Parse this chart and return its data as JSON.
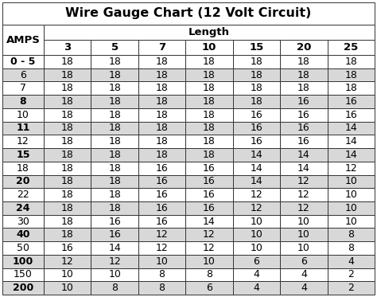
{
  "title": "Wire Gauge Chart (12 Volt Circuit)",
  "col_header_top": "Length",
  "row_header": "AMPS",
  "length_cols": [
    "3",
    "5",
    "7",
    "10",
    "15",
    "20",
    "25"
  ],
  "amp_rows": [
    "0 - 5",
    "6",
    "7",
    "8",
    "10",
    "11",
    "12",
    "15",
    "18",
    "20",
    "22",
    "24",
    "30",
    "40",
    "50",
    "100",
    "150",
    "200"
  ],
  "table_data": [
    [
      18,
      18,
      18,
      18,
      18,
      18,
      18
    ],
    [
      18,
      18,
      18,
      18,
      18,
      18,
      18
    ],
    [
      18,
      18,
      18,
      18,
      18,
      18,
      18
    ],
    [
      18,
      18,
      18,
      18,
      18,
      16,
      16
    ],
    [
      18,
      18,
      18,
      18,
      16,
      16,
      16
    ],
    [
      18,
      18,
      18,
      18,
      16,
      16,
      14
    ],
    [
      18,
      18,
      18,
      18,
      16,
      16,
      14
    ],
    [
      18,
      18,
      18,
      18,
      14,
      14,
      14
    ],
    [
      18,
      18,
      16,
      16,
      14,
      14,
      12
    ],
    [
      18,
      18,
      16,
      16,
      14,
      12,
      10
    ],
    [
      18,
      18,
      16,
      16,
      12,
      12,
      10
    ],
    [
      18,
      18,
      16,
      16,
      12,
      12,
      10
    ],
    [
      18,
      16,
      16,
      14,
      10,
      10,
      10
    ],
    [
      18,
      16,
      12,
      12,
      10,
      10,
      8
    ],
    [
      16,
      14,
      12,
      12,
      10,
      10,
      8
    ],
    [
      12,
      12,
      10,
      10,
      6,
      6,
      4
    ],
    [
      10,
      10,
      8,
      8,
      4,
      4,
      2
    ],
    [
      10,
      8,
      8,
      6,
      4,
      4,
      2
    ]
  ],
  "shaded_row_indices": [
    1,
    3,
    5,
    7,
    9,
    11,
    13,
    15,
    17
  ],
  "bold_amp_indices": [
    0,
    3,
    5,
    7,
    9,
    11,
    13,
    15,
    17
  ],
  "bg_color": "#ffffff",
  "shaded_color": "#d8d8d8",
  "border_color": "#333333",
  "text_color": "#000000",
  "title_fontsize": 11.5,
  "header_fontsize": 9.5,
  "cell_fontsize": 9
}
